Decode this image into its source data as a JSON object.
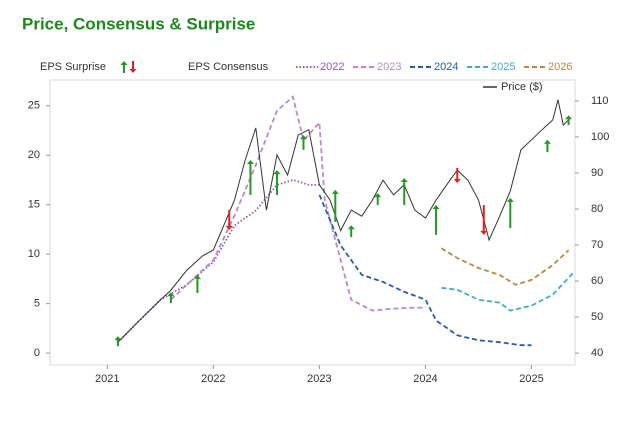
{
  "chart_data": {
    "type": "line",
    "title": "Price, Consensus & Surprise",
    "consensus_label": "EPS Consensus",
    "xlim": [
      2020.46,
      2025.41
    ],
    "xticks": [
      2021,
      2022,
      2023,
      2024,
      2025
    ],
    "ylim": [
      -1.2,
      27.6
    ],
    "yticks": [
      0,
      5,
      10,
      15,
      20,
      25
    ],
    "y2lim": [
      36.7,
      115.8
    ],
    "y2ticks": [
      40,
      50,
      60,
      70,
      80,
      90,
      100,
      110
    ],
    "series": [
      {
        "name": "2022",
        "color": "#9955bb",
        "style": "dotted",
        "x": [
          2021.1,
          2021.5,
          2021.75,
          2022.0,
          2022.2,
          2022.4,
          2022.6,
          2022.75,
          2022.9,
          2023.0
        ],
        "values": [
          1.1,
          5.4,
          6.9,
          9.2,
          12.9,
          14.4,
          17,
          17.5,
          17,
          17
        ]
      },
      {
        "name": "2023",
        "color": "#bb88cc",
        "style": "dashed",
        "x": [
          2021.6,
          2022.0,
          2022.2,
          2022.4,
          2022.6,
          2022.75,
          2022.85,
          2023.0,
          2023.05,
          2023.2,
          2023.3,
          2023.5,
          2023.7,
          2023.9,
          2024.0
        ],
        "values": [
          5.4,
          9.4,
          13.9,
          19,
          24.5,
          25.9,
          21.5,
          23.3,
          15.5,
          9.4,
          5.4,
          4.3,
          4.5,
          4.6,
          4.6
        ]
      },
      {
        "name": "2024",
        "color": "#2a5caa",
        "style": "dashed",
        "x": [
          2023.0,
          2023.2,
          2023.4,
          2023.6,
          2023.8,
          2024.0,
          2024.1,
          2024.3,
          2024.5,
          2024.7,
          2024.9,
          2025.0
        ],
        "values": [
          16,
          10.9,
          7.9,
          7.2,
          6.2,
          5.4,
          3.3,
          1.8,
          1.3,
          1.1,
          0.8,
          0.8
        ]
      },
      {
        "name": "2025",
        "color": "#44aacc",
        "style": "dashed",
        "x": [
          2024.15,
          2024.3,
          2024.5,
          2024.7,
          2024.8,
          2025.0,
          2025.2,
          2025.4
        ],
        "values": [
          6.6,
          6.4,
          5.4,
          5.1,
          4.3,
          4.8,
          5.9,
          8.2
        ]
      },
      {
        "name": "2026",
        "color": "#bb8844",
        "style": "dashed",
        "x": [
          2024.15,
          2024.3,
          2024.5,
          2024.7,
          2024.85,
          2025.0,
          2025.2,
          2025.35
        ],
        "values": [
          10.6,
          9.6,
          8.6,
          7.9,
          6.9,
          7.4,
          8.9,
          10.4
        ]
      },
      {
        "name": "Price ($)",
        "color": "#333333",
        "style": "solid",
        "axis": "y2",
        "x": [
          2021.1,
          2021.3,
          2021.5,
          2021.6,
          2021.75,
          2021.9,
          2022.0,
          2022.1,
          2022.2,
          2022.3,
          2022.4,
          2022.5,
          2022.6,
          2022.7,
          2022.8,
          2022.9,
          2023.0,
          2023.1,
          2023.2,
          2023.3,
          2023.4,
          2023.5,
          2023.6,
          2023.7,
          2023.8,
          2023.9,
          2024.0,
          2024.1,
          2024.2,
          2024.3,
          2024.4,
          2024.5,
          2024.6,
          2024.7,
          2024.8,
          2024.9,
          2025.0,
          2025.1,
          2025.2,
          2025.25,
          2025.3,
          2025.35
        ],
        "values": [
          43,
          49,
          54.7,
          57.5,
          63,
          67,
          68.6,
          75.5,
          82.5,
          93.6,
          102.5,
          79.7,
          95,
          89.4,
          100.5,
          102,
          86.7,
          82.5,
          74,
          79.7,
          78,
          82.5,
          88,
          83.9,
          86.7,
          79.7,
          77.5,
          82.5,
          86.7,
          90.8,
          88,
          82.5,
          71.4,
          78,
          85,
          96.4,
          99.2,
          102,
          104.7,
          110.3,
          103.3,
          104.7
        ]
      }
    ],
    "surprise": {
      "name": "EPS Surprise",
      "up_color": "#229922",
      "down_color": "#dd2222",
      "axis": "y2",
      "x": [
        2021.1,
        2021.6,
        2021.85,
        2022.15,
        2022.35,
        2022.6,
        2022.85,
        2023.15,
        2023.3,
        2023.55,
        2023.8,
        2024.1,
        2024.3,
        2024.55,
        2024.8,
        2025.15,
        2025.35
      ],
      "from": [
        41.9,
        53.9,
        56.7,
        79.7,
        83.9,
        83.9,
        96.4,
        76.4,
        72.2,
        81.1,
        81.1,
        72.8,
        91.4,
        81.1,
        74.7,
        95.8,
        103.3
      ],
      "to": [
        44.7,
        56.9,
        61.7,
        74.2,
        93.6,
        90.8,
        100.5,
        85.3,
        75.5,
        84.4,
        88.6,
        81.1,
        87.2,
        72.8,
        83.1,
        99.2,
        106
      ]
    }
  }
}
